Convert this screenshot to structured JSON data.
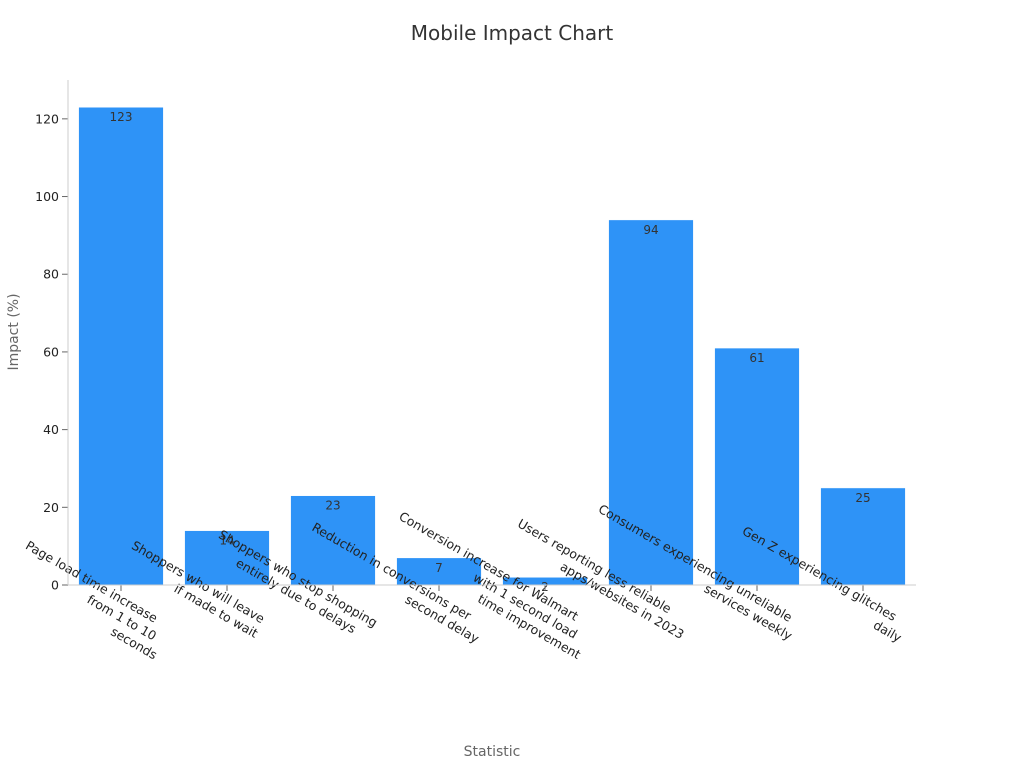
{
  "chart_data": {
    "type": "bar",
    "title": "Mobile Impact Chart",
    "xlabel": "Statistic",
    "ylabel": "Impact (%)",
    "ylim": [
      0,
      130
    ],
    "yticks": [
      0,
      20,
      40,
      60,
      80,
      100,
      120
    ],
    "grid": false,
    "legend": "none",
    "bar_color": "#2e93f7",
    "categories": [
      [
        "Page load time increase",
        "from 1 to 10",
        "seconds"
      ],
      [
        "Shoppers who will leave",
        "if made to wait"
      ],
      [
        "Shoppers who stop shopping",
        "entirely due to delays"
      ],
      [
        "Reduction in conversions per",
        "second delay"
      ],
      [
        "Conversion increase for Walmart",
        "with 1 second load",
        "time improvement"
      ],
      [
        "Users reporting less reliable",
        "apps/websites in 2023"
      ],
      [
        "Consumers experiencing unreliable",
        "services weekly"
      ],
      [
        "Gen Z experiencing glitches",
        "daily"
      ]
    ],
    "values": [
      123,
      14,
      23,
      7,
      2,
      94,
      61,
      25
    ]
  }
}
